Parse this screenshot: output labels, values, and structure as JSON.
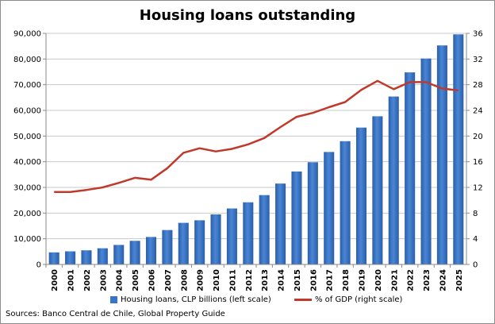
{
  "chart_data": {
    "type": "bar",
    "title": "Housing loans outstanding",
    "categories": [
      "2000",
      "2001",
      "2002",
      "2003",
      "2004",
      "2005",
      "2006",
      "2007",
      "2008",
      "2009",
      "2010",
      "2011",
      "2012",
      "2013",
      "2014",
      "2015",
      "2016",
      "2017",
      "2018",
      "2019",
      "2020",
      "2021",
      "2022",
      "2023",
      "2024",
      "2025"
    ],
    "series": [
      {
        "name": "Housing loans, CLP billions (left scale)",
        "axis": "left",
        "type": "bar",
        "color": "#3a74c4",
        "values": [
          4700,
          5100,
          5500,
          6300,
          7600,
          9200,
          10700,
          13400,
          16200,
          17200,
          19500,
          21800,
          24200,
          27000,
          31500,
          36200,
          39800,
          43800,
          48000,
          53300,
          57700,
          65400,
          74800,
          80200,
          85300,
          89600
        ]
      },
      {
        "name": "% of GDP (right scale)",
        "axis": "right",
        "type": "line",
        "color": "#c0392b",
        "values": [
          11.3,
          11.3,
          11.6,
          12.0,
          12.7,
          13.5,
          13.2,
          15.0,
          17.4,
          18.1,
          17.6,
          18.0,
          18.7,
          19.7,
          21.4,
          23.0,
          23.6,
          24.5,
          25.3,
          27.2,
          28.6,
          27.3,
          28.4,
          28.4,
          27.4,
          27.1
        ]
      }
    ],
    "y_left": {
      "lim": [
        0,
        90000
      ],
      "ticks": [
        "0",
        "10,000",
        "20,000",
        "30,000",
        "40,000",
        "50,000",
        "60,000",
        "70,000",
        "80,000",
        "90,000"
      ]
    },
    "y_right": {
      "lim": [
        0,
        36
      ],
      "ticks": [
        "0",
        "4",
        "8",
        "12",
        "16",
        "20",
        "24",
        "28",
        "32",
        "36"
      ]
    },
    "grid": true,
    "legend_position": "bottom"
  },
  "legend": {
    "bar_label": "Housing loans, CLP billions (left scale)",
    "line_label": "% of GDP (right scale)"
  },
  "source_note": "Sources: Banco Central de Chile, Global Property Guide"
}
